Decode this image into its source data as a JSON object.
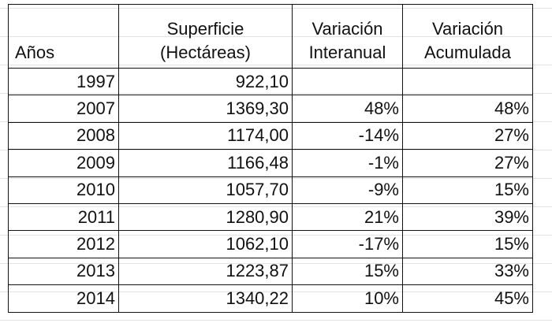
{
  "table": {
    "header": [
      [
        "Años"
      ],
      [
        "Superficie",
        "(Hectáreas)"
      ],
      [
        "Variación",
        "Interanual"
      ],
      [
        "Variación",
        "Acumulada"
      ]
    ],
    "rows": [
      [
        "1997",
        "922,10"
      ],
      [
        "2007",
        "1369,30",
        "48%",
        "48%"
      ],
      [
        "2008",
        "1174,00",
        "-14%",
        "27%"
      ],
      [
        "2009",
        "1166,48",
        "-1%",
        "27%"
      ],
      [
        "2010",
        "1057,70",
        "-9%",
        "15%"
      ],
      [
        "2011",
        "1280,90",
        "21%",
        "39%"
      ],
      [
        "2012",
        "1062,10",
        "-17%",
        "15%"
      ],
      [
        "2013",
        "1223,87",
        "15%",
        "33%"
      ],
      [
        "2014",
        "1340,22",
        "10%",
        "45%"
      ]
    ]
  }
}
